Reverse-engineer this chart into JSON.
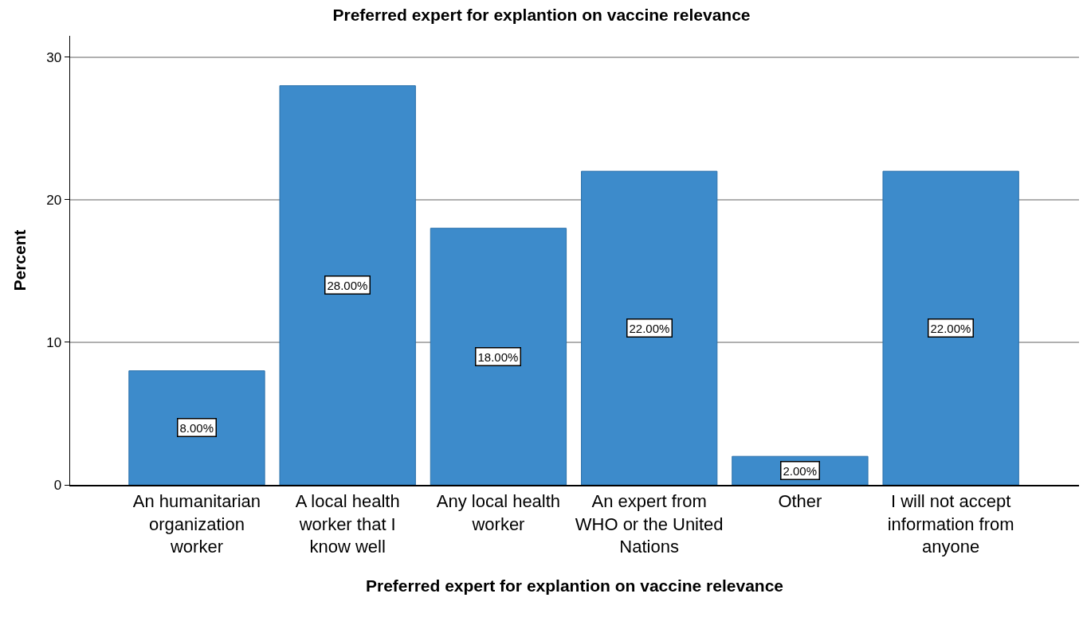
{
  "chart_data": {
    "type": "bar",
    "title": "Preferred expert for explantion on vaccine relevance",
    "xlabel": "Preferred expert for explantion on vaccine relevance",
    "ylabel": "Percent",
    "categories": [
      "An humanitarian organization worker",
      "A local health worker that I know well",
      "Any local health worker",
      "An expert from WHO or the United Nations",
      "Other",
      "I will not accept information from anyone"
    ],
    "values": [
      8,
      28,
      18,
      22,
      2,
      22
    ],
    "value_labels": [
      "8.00%",
      "28.00%",
      "18.00%",
      "22.00%",
      "2.00%",
      "22.00%"
    ],
    "color": "#3d8bcb",
    "ylim": [
      0,
      31.5
    ],
    "yticks": [
      0,
      10,
      20,
      30
    ],
    "grid": "y"
  }
}
